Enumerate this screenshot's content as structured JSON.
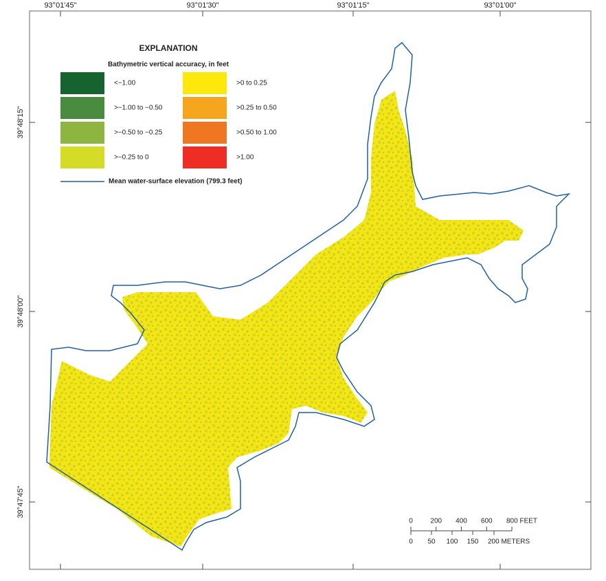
{
  "map": {
    "longitude_labels": [
      "93°01'45\"",
      "93°01'30\"",
      "93°01'15\"",
      "93°01'00\""
    ],
    "latitude_labels": [
      "39°48'15\"",
      "39°48'00\"",
      "39°47'45\""
    ]
  },
  "explanation": {
    "title": "EXPLANATION",
    "subtitle": "Bathymetric vertical accuracy, in feet",
    "classes": [
      {
        "label": "<−1.00",
        "color": "#17632f"
      },
      {
        "label": ">−1.00 to −0.50",
        "color": "#4a8c3f"
      },
      {
        "label": ">−0.50 to −0.25",
        "color": "#8db53f"
      },
      {
        "label": ">−0.25 to 0",
        "color": "#d4dc26"
      },
      {
        "label": ">0 to 0.25",
        "color": "#fce80a"
      },
      {
        "label": ">0.25 to 0.50",
        "color": "#f6a61e"
      },
      {
        "label": ">0.50 to 1.00",
        "color": "#f07722"
      },
      {
        "label": ">1.00",
        "color": "#ee2d24"
      }
    ],
    "line_label": "Mean water-surface elevation (799.3 feet)",
    "line_color": "#1f5fa8"
  },
  "scale_bar": {
    "feet_labels": [
      "0",
      "200",
      "400",
      "600",
      "800 FEET"
    ],
    "meter_labels": [
      "0",
      "50",
      "100",
      "150",
      "200 METERS"
    ]
  }
}
